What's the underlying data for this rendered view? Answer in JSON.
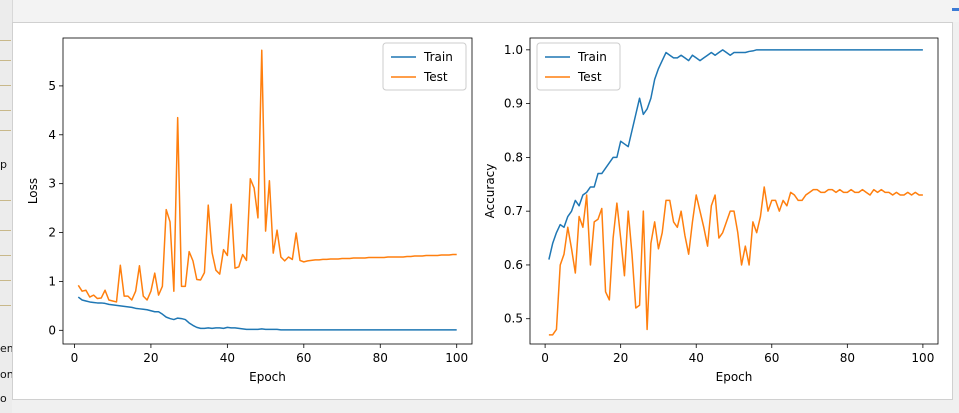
{
  "side_text": [
    "p",
    "em",
    "on",
    "o"
  ],
  "colors": {
    "train": "#1f77b4",
    "test": "#ff7f0e"
  },
  "chart_data": [
    {
      "type": "line",
      "xlabel": "Epoch",
      "ylabel": "Loss",
      "xlim": [
        -3,
        104
      ],
      "ylim": [
        -0.28,
        5.98
      ],
      "xticks": [
        0,
        20,
        40,
        60,
        80,
        100
      ],
      "yticks": [
        0,
        1,
        2,
        3,
        4,
        5
      ],
      "grid": false,
      "legend_position": "upper-right",
      "x": [
        1,
        2,
        3,
        4,
        5,
        6,
        7,
        8,
        9,
        10,
        11,
        12,
        13,
        14,
        15,
        16,
        17,
        18,
        19,
        20,
        21,
        22,
        23,
        24,
        25,
        26,
        27,
        28,
        29,
        30,
        31,
        32,
        33,
        34,
        35,
        36,
        37,
        38,
        39,
        40,
        41,
        42,
        43,
        44,
        45,
        46,
        47,
        48,
        49,
        50,
        51,
        52,
        53,
        54,
        55,
        56,
        57,
        58,
        59,
        60,
        61,
        62,
        63,
        64,
        65,
        66,
        67,
        68,
        69,
        70,
        71,
        72,
        73,
        74,
        75,
        76,
        77,
        78,
        79,
        80,
        81,
        82,
        83,
        84,
        85,
        86,
        87,
        88,
        89,
        90,
        91,
        92,
        93,
        94,
        95,
        96,
        97,
        98,
        99,
        100
      ],
      "series": [
        {
          "name": "Train",
          "color": "#1f77b4",
          "values": [
            0.68,
            0.62,
            0.6,
            0.58,
            0.57,
            0.56,
            0.56,
            0.55,
            0.53,
            0.52,
            0.51,
            0.5,
            0.49,
            0.48,
            0.47,
            0.45,
            0.44,
            0.43,
            0.42,
            0.4,
            0.38,
            0.38,
            0.33,
            0.27,
            0.24,
            0.22,
            0.25,
            0.24,
            0.22,
            0.15,
            0.1,
            0.06,
            0.04,
            0.04,
            0.05,
            0.04,
            0.05,
            0.05,
            0.04,
            0.06,
            0.05,
            0.05,
            0.04,
            0.03,
            0.02,
            0.02,
            0.02,
            0.02,
            0.03,
            0.02,
            0.02,
            0.02,
            0.02,
            0.01,
            0.01,
            0.01,
            0.01,
            0.01,
            0.01,
            0.01,
            0.01,
            0.01,
            0.01,
            0.01,
            0.01,
            0.01,
            0.01,
            0.01,
            0.01,
            0.01,
            0.01,
            0.01,
            0.01,
            0.01,
            0.01,
            0.01,
            0.01,
            0.01,
            0.01,
            0.01,
            0.01,
            0.01,
            0.01,
            0.01,
            0.01,
            0.01,
            0.01,
            0.01,
            0.01,
            0.01,
            0.01,
            0.01,
            0.01,
            0.01,
            0.01,
            0.01,
            0.01,
            0.01,
            0.01,
            0.01
          ]
        },
        {
          "name": "Test",
          "color": "#ff7f0e",
          "values": [
            0.92,
            0.8,
            0.82,
            0.68,
            0.72,
            0.65,
            0.66,
            0.82,
            0.62,
            0.6,
            0.58,
            1.33,
            0.7,
            0.7,
            0.62,
            0.8,
            1.32,
            0.7,
            0.62,
            0.8,
            1.17,
            0.72,
            0.9,
            2.47,
            2.22,
            0.8,
            4.35,
            0.9,
            0.9,
            1.61,
            1.42,
            1.04,
            1.03,
            1.18,
            2.56,
            1.59,
            1.23,
            1.15,
            1.65,
            1.53,
            2.58,
            1.27,
            1.3,
            1.55,
            1.43,
            3.1,
            2.91,
            2.3,
            5.73,
            2.03,
            3.06,
            1.58,
            2.05,
            1.5,
            1.42,
            1.5,
            1.45,
            1.99,
            1.43,
            1.4,
            1.42,
            1.43,
            1.44,
            1.44,
            1.45,
            1.45,
            1.46,
            1.46,
            1.46,
            1.47,
            1.47,
            1.47,
            1.48,
            1.48,
            1.48,
            1.48,
            1.49,
            1.49,
            1.49,
            1.49,
            1.49,
            1.5,
            1.5,
            1.5,
            1.5,
            1.5,
            1.51,
            1.51,
            1.52,
            1.52,
            1.52,
            1.53,
            1.53,
            1.53,
            1.53,
            1.54,
            1.54,
            1.54,
            1.55,
            1.55
          ]
        }
      ]
    },
    {
      "type": "line",
      "xlabel": "Epoch",
      "ylabel": "Accuracy",
      "xlim": [
        -4,
        104
      ],
      "ylim": [
        0.453,
        1.022
      ],
      "xticks": [
        0,
        20,
        40,
        60,
        80,
        100
      ],
      "yticks": [
        0.5,
        0.6,
        0.7,
        0.8,
        0.9,
        1.0
      ],
      "ytick_labels": [
        "0.5",
        "0.6",
        "0.7",
        "0.8",
        "0.9",
        "1.0"
      ],
      "grid": false,
      "legend_position": "upper-left",
      "x": [
        1,
        2,
        3,
        4,
        5,
        6,
        7,
        8,
        9,
        10,
        11,
        12,
        13,
        14,
        15,
        16,
        17,
        18,
        19,
        20,
        21,
        22,
        23,
        24,
        25,
        26,
        27,
        28,
        29,
        30,
        31,
        32,
        33,
        34,
        35,
        36,
        37,
        38,
        39,
        40,
        41,
        42,
        43,
        44,
        45,
        46,
        47,
        48,
        49,
        50,
        51,
        52,
        53,
        54,
        55,
        56,
        57,
        58,
        59,
        60,
        61,
        62,
        63,
        64,
        65,
        66,
        67,
        68,
        69,
        70,
        71,
        72,
        73,
        74,
        75,
        76,
        77,
        78,
        79,
        80,
        81,
        82,
        83,
        84,
        85,
        86,
        87,
        88,
        89,
        90,
        91,
        92,
        93,
        94,
        95,
        96,
        97,
        98,
        99,
        100
      ],
      "series": [
        {
          "name": "Train",
          "color": "#1f77b4",
          "values": [
            0.61,
            0.64,
            0.66,
            0.675,
            0.67,
            0.69,
            0.7,
            0.72,
            0.71,
            0.73,
            0.735,
            0.745,
            0.745,
            0.77,
            0.77,
            0.78,
            0.79,
            0.8,
            0.8,
            0.83,
            0.825,
            0.82,
            0.85,
            0.88,
            0.91,
            0.88,
            0.89,
            0.91,
            0.945,
            0.965,
            0.98,
            0.995,
            0.99,
            0.985,
            0.985,
            0.99,
            0.985,
            0.98,
            0.99,
            0.985,
            0.98,
            0.985,
            0.99,
            0.995,
            0.99,
            0.995,
            1.0,
            0.995,
            0.99,
            0.995,
            0.995,
            0.995,
            0.995,
            0.997,
            0.998,
            1.0,
            1.0,
            1.0,
            1.0,
            1.0,
            1.0,
            1.0,
            1.0,
            1.0,
            1.0,
            1.0,
            1.0,
            1.0,
            1.0,
            1.0,
            1.0,
            1.0,
            1.0,
            1.0,
            1.0,
            1.0,
            1.0,
            1.0,
            1.0,
            1.0,
            1.0,
            1.0,
            1.0,
            1.0,
            1.0,
            1.0,
            1.0,
            1.0,
            1.0,
            1.0,
            1.0,
            1.0,
            1.0,
            1.0,
            1.0,
            1.0,
            1.0,
            1.0,
            1.0,
            1.0
          ]
        },
        {
          "name": "Test",
          "color": "#ff7f0e",
          "values": [
            0.47,
            0.47,
            0.48,
            0.6,
            0.62,
            0.67,
            0.63,
            0.585,
            0.69,
            0.67,
            0.73,
            0.6,
            0.68,
            0.685,
            0.705,
            0.55,
            0.535,
            0.65,
            0.715,
            0.65,
            0.58,
            0.7,
            0.62,
            0.52,
            0.525,
            0.7,
            0.48,
            0.64,
            0.68,
            0.63,
            0.66,
            0.72,
            0.72,
            0.68,
            0.67,
            0.7,
            0.655,
            0.62,
            0.68,
            0.73,
            0.7,
            0.67,
            0.635,
            0.71,
            0.73,
            0.65,
            0.66,
            0.68,
            0.7,
            0.7,
            0.66,
            0.6,
            0.635,
            0.6,
            0.68,
            0.66,
            0.69,
            0.745,
            0.7,
            0.72,
            0.72,
            0.7,
            0.72,
            0.71,
            0.735,
            0.73,
            0.72,
            0.72,
            0.73,
            0.735,
            0.74,
            0.74,
            0.735,
            0.735,
            0.74,
            0.74,
            0.735,
            0.74,
            0.735,
            0.735,
            0.74,
            0.735,
            0.735,
            0.74,
            0.735,
            0.73,
            0.74,
            0.735,
            0.74,
            0.735,
            0.735,
            0.73,
            0.735,
            0.73,
            0.73,
            0.735,
            0.73,
            0.735,
            0.73,
            0.73
          ]
        }
      ]
    }
  ]
}
